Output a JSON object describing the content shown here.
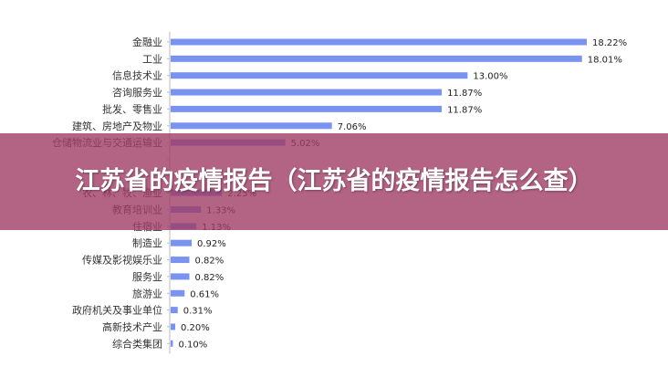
{
  "overlay": {
    "title": "江苏省的疫情报告（江苏省的疫情报告怎么查）"
  },
  "colors": {
    "bar": "#7b93f0",
    "overlay": "#a03c64"
  },
  "chart_data": {
    "type": "bar",
    "orientation": "horizontal",
    "title": "",
    "xlabel": "",
    "ylabel": "",
    "xlim": [
      0,
      18.22
    ],
    "grid": false,
    "categories": [
      "金融业",
      "工业",
      "信息技术业",
      "咨询服务业",
      "批发、零售业",
      "建筑、房地产及物业",
      "仓储物流业与交通运输业",
      "",
      "",
      "农、林、牧、渔业",
      "教育培训业",
      "住宿业",
      "制造业",
      "传媒及影视娱乐业",
      "服务业",
      "旅游业",
      "政府机关及事业单位",
      "高新技术产业",
      "综合类集团"
    ],
    "values": [
      18.22,
      18.01,
      13.0,
      11.87,
      11.87,
      7.06,
      5.02,
      null,
      null,
      2.25,
      1.33,
      1.13,
      0.92,
      0.82,
      0.82,
      0.61,
      0.31,
      0.2,
      0.1
    ],
    "value_labels": [
      "18.22%",
      "18.01%",
      "13.00%",
      "11.87%",
      "11.87%",
      "7.06%",
      "5.02%",
      "",
      "",
      "2.25%",
      "1.33%",
      "1.13%",
      "0.92%",
      "0.82%",
      "0.82%",
      "0.61%",
      "0.31%",
      "0.20%",
      "0.10%"
    ]
  }
}
